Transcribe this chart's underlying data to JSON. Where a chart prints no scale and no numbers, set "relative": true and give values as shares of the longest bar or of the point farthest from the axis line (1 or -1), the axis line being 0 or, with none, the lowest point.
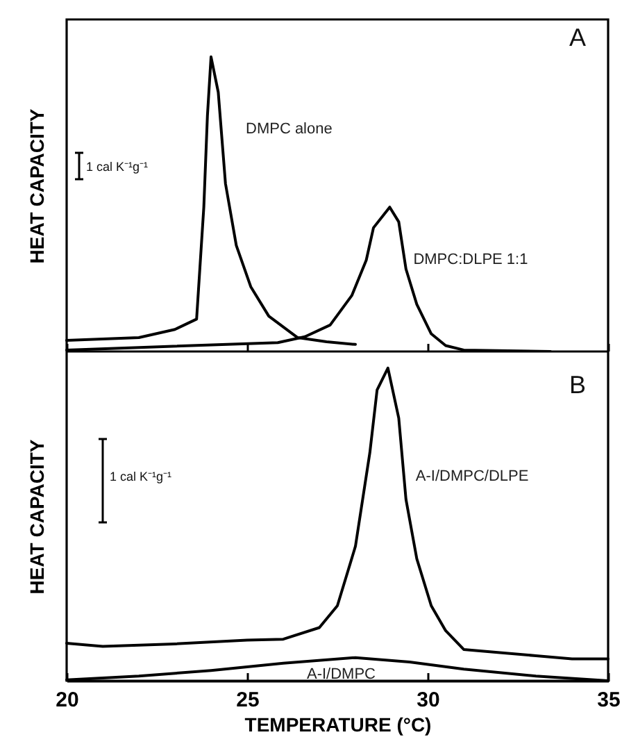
{
  "chart_data": [
    {
      "type": "line",
      "relative": true,
      "ylabel": "HEAT CAPACITY",
      "xlim": [
        20,
        35
      ],
      "xticks": [
        20,
        25,
        30,
        35
      ],
      "tick_labels": false,
      "annotations": [
        "A",
        "1 cal K⁻¹g⁻¹"
      ],
      "series": [
        {
          "name": "DMPC alone",
          "color": "#000000",
          "x": [
            20,
            22,
            23,
            23.6,
            23.8,
            23.9,
            24.0,
            24.2,
            24.4,
            24.7,
            25.1,
            25.6,
            26.4,
            27.2,
            28.0
          ],
          "values": [
            0.038,
            0.047,
            0.075,
            0.11,
            0.49,
            0.8,
            1.0,
            0.88,
            0.57,
            0.36,
            0.22,
            0.12,
            0.047,
            0.033,
            0.024
          ]
        },
        {
          "name": "DMPC:DLPE 1:1",
          "color": "#000000",
          "x": [
            20,
            25.85,
            26.6,
            27.3,
            27.9,
            28.3,
            28.5,
            28.95,
            29.2,
            29.4,
            29.7,
            30.1,
            30.5,
            31.0,
            33.4
          ],
          "values": [
            0.005,
            0.03,
            0.05,
            0.09,
            0.19,
            0.31,
            0.42,
            0.49,
            0.44,
            0.28,
            0.16,
            0.06,
            0.02,
            0.005,
            0
          ]
        }
      ]
    },
    {
      "type": "line",
      "relative": true,
      "ylabel": "HEAT CAPACITY",
      "xlabel": "TEMPERATURE (°C)",
      "xlim": [
        20,
        35
      ],
      "xticks": [
        20,
        25,
        30,
        35
      ],
      "tick_labels": "x",
      "annotations": [
        "B",
        "1 cal K⁻¹g⁻¹"
      ],
      "series": [
        {
          "name": "A-I/DMPC/DLPE",
          "color": "#000000",
          "x": [
            20,
            21,
            23,
            25,
            26,
            27,
            27.5,
            28,
            28.4,
            28.6,
            28.9,
            29.2,
            29.4,
            29.7,
            30.1,
            30.5,
            31,
            32,
            33,
            34,
            35
          ],
          "values": [
            0.12,
            0.11,
            0.118,
            0.13,
            0.133,
            0.17,
            0.24,
            0.43,
            0.73,
            0.93,
            1.0,
            0.84,
            0.58,
            0.39,
            0.24,
            0.16,
            0.1,
            0.09,
            0.08,
            0.07,
            0.07
          ]
        },
        {
          "name": "A-I/DMPC",
          "color": "#000000",
          "x": [
            20,
            22,
            24,
            26,
            28,
            29.5,
            31,
            33,
            35
          ],
          "values": [
            0.003,
            0.015,
            0.033,
            0.056,
            0.074,
            0.06,
            0.037,
            0.015,
            0
          ]
        }
      ]
    }
  ]
}
